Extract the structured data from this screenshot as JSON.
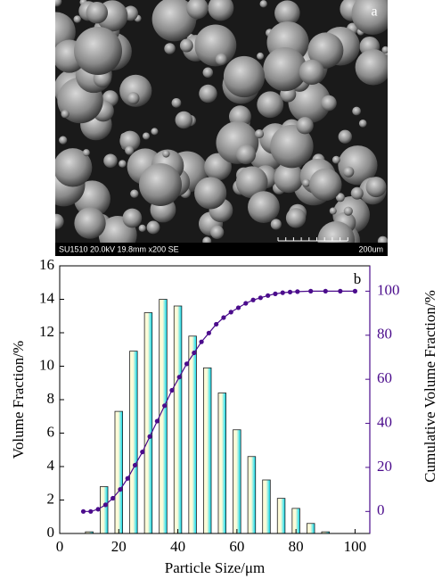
{
  "image": {
    "label": "a",
    "info": "SU1510 20.0kV 19.8mm x200 SE",
    "scale": "200um"
  },
  "chart_data": {
    "type": "bar",
    "panel_label": "b",
    "xlabel": "Particle Size/μm",
    "ylabel": "Volume Fraction/%",
    "y2label": "Cumulative Volume Fraction/%",
    "xlim": [
      0,
      105
    ],
    "xticks": [
      0,
      20,
      40,
      60,
      80,
      100
    ],
    "ylim": [
      0,
      16
    ],
    "yticks": [
      0,
      2,
      4,
      6,
      8,
      10,
      12,
      14,
      16
    ],
    "y2lim": [
      -10,
      111.5
    ],
    "y2ticks": [
      0,
      20,
      40,
      60,
      80,
      100
    ],
    "y2color": "#4b0c8c",
    "series": [
      {
        "type": "bar",
        "color": "#00d8f0",
        "x": [
          10,
          15,
          20,
          25,
          30,
          35,
          40,
          45,
          50,
          55,
          60,
          65,
          70,
          75,
          80,
          85,
          90
        ],
        "values": [
          0.1,
          2.8,
          7.3,
          10.9,
          13.2,
          14.0,
          13.6,
          11.8,
          9.9,
          8.4,
          6.2,
          4.6,
          3.2,
          2.1,
          1.5,
          0.6,
          0.1
        ]
      },
      {
        "type": "line",
        "axis": "y2",
        "color": "#4b0c8c",
        "x": [
          8,
          10.5,
          13,
          15.5,
          18,
          20.5,
          23,
          25.5,
          28,
          30.5,
          33,
          35.5,
          38,
          40.5,
          43,
          45.5,
          48,
          50.5,
          53,
          55.5,
          58,
          60.5,
          63,
          65.5,
          68,
          70.5,
          73,
          75.5,
          78,
          80.5,
          85,
          90,
          95,
          100
        ],
        "values": [
          0,
          0,
          1,
          3,
          6,
          10,
          15,
          21,
          27,
          34,
          41,
          48,
          55,
          61,
          67,
          72,
          77,
          81,
          85,
          88,
          90.5,
          92.5,
          94.5,
          96,
          97,
          98,
          98.8,
          99.3,
          99.6,
          99.8,
          100,
          100,
          100,
          100
        ]
      }
    ]
  }
}
